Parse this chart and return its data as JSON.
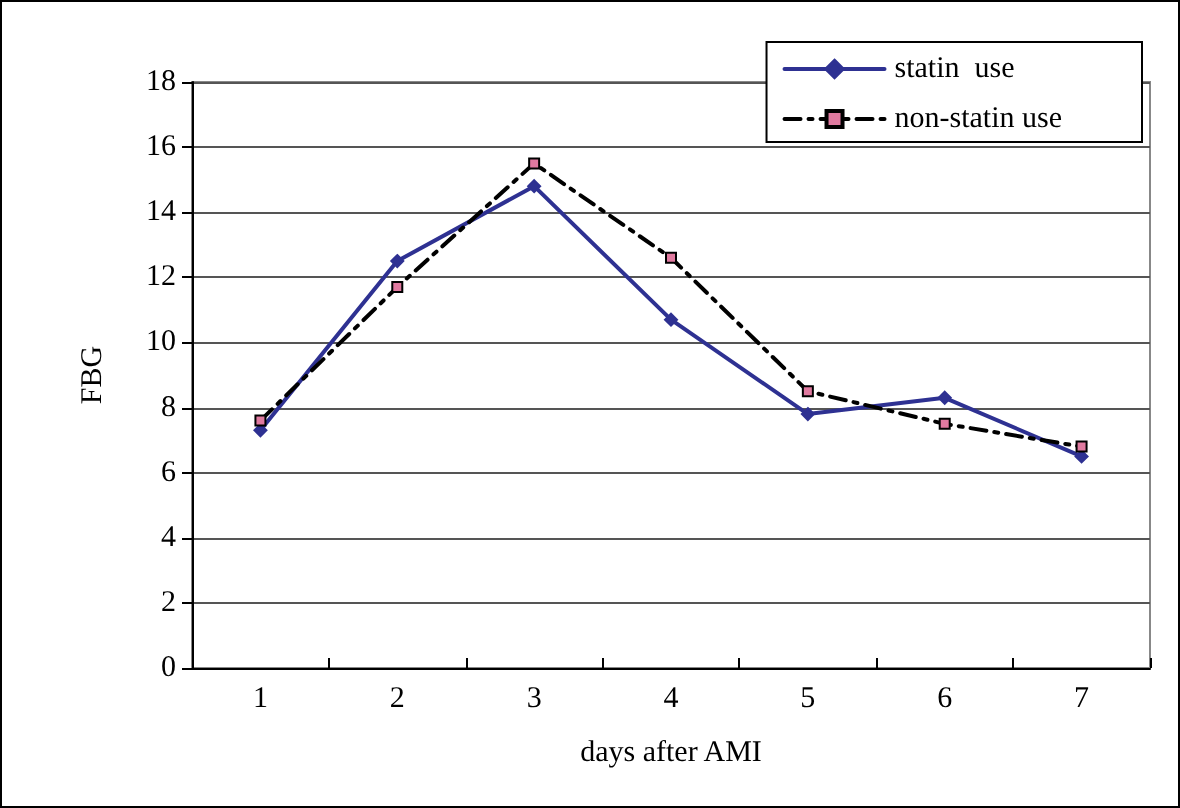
{
  "chart_data": {
    "type": "line",
    "xlabel": "days after AMI",
    "ylabel": "FBG",
    "categories": [
      "1",
      "2",
      "3",
      "4",
      "5",
      "6",
      "7"
    ],
    "ylim": [
      0,
      18
    ],
    "yticks": [
      0,
      2,
      4,
      6,
      8,
      10,
      12,
      14,
      16,
      18
    ],
    "grid": "y",
    "legend": "top right",
    "series": [
      {
        "name": "statin  use",
        "color": "#2e3192",
        "marker": "diamond",
        "line_style": "solid",
        "values": [
          7.3,
          12.5,
          14.8,
          10.7,
          7.8,
          8.3,
          6.5
        ]
      },
      {
        "name": "non-statin use",
        "color": "#000000",
        "marker": "square",
        "line_style": "dashed",
        "values": [
          7.6,
          11.7,
          15.5,
          12.6,
          8.5,
          7.5,
          6.8
        ]
      }
    ]
  }
}
